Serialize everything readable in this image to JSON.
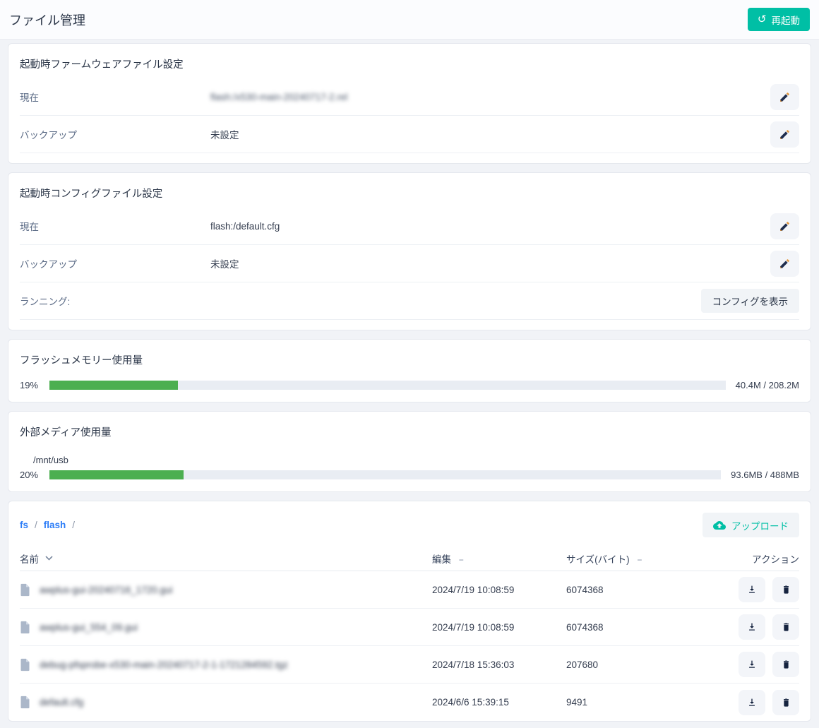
{
  "page": {
    "title": "ファイル管理"
  },
  "header": {
    "restart_label": "再起動",
    "restart_icon_glyph": "↺"
  },
  "colors": {
    "accent_teal": "#00bfa5",
    "progress_green": "#4caf50",
    "link_blue": "#2b7cf7",
    "icon_navy": "#15233f",
    "pencil_tip_orange": "#e0953c"
  },
  "firmware_card": {
    "title": "起動時ファームウェアファイル設定",
    "rows": [
      {
        "label": "現在",
        "value": "flash:/x530-main-20240717-2.rel",
        "blurred": true
      },
      {
        "label": "バックアップ",
        "value": "未設定",
        "blurred": false
      }
    ]
  },
  "config_card": {
    "title": "起動時コンフィグファイル設定",
    "rows": [
      {
        "label": "現在",
        "value": "flash:/default.cfg",
        "blurred": false
      },
      {
        "label": "バックアップ",
        "value": "未設定",
        "blurred": false
      },
      {
        "label": "ランニング:",
        "value": "",
        "blurred": false,
        "button_label": "コンフィグを表示"
      }
    ]
  },
  "flash_usage_card": {
    "title": "フラッシュメモリー使用量",
    "percent_label": "19%",
    "percent": 19,
    "usage_text": "40.4M / 208.2M"
  },
  "external_media_card": {
    "title": "外部メディア使用量",
    "mount_label": "/mnt/usb",
    "percent_label": "20%",
    "percent": 20,
    "usage_text": "93.6MB / 488MB"
  },
  "file_browser_card": {
    "breadcrumb": [
      {
        "label": "fs"
      },
      {
        "label": "flash"
      }
    ],
    "breadcrumb_separator": "/",
    "upload_label": "アップロード",
    "table": {
      "headers": {
        "name": "名前",
        "modified": "編集",
        "size": "サイズ(バイト)",
        "actions": "アクション"
      },
      "sort_dash": "−",
      "rows": [
        {
          "name": "awplus-gui-20240716_1720.gui",
          "name_blurred": true,
          "modified": "2024/7/19 10:08:59",
          "size": "6074368"
        },
        {
          "name": "awplus-gui_554_09.gui",
          "name_blurred": true,
          "modified": "2024/7/19 10:08:59",
          "size": "6074368"
        },
        {
          "name": "debug-pfsprobe-x530-main-20240717-2-1-1721284592.tgz",
          "name_blurred": true,
          "modified": "2024/7/18 15:36:03",
          "size": "207680"
        },
        {
          "name": "default.cfg",
          "name_blurred": true,
          "modified": "2024/6/6 15:39:15",
          "size": "9491"
        }
      ]
    }
  }
}
